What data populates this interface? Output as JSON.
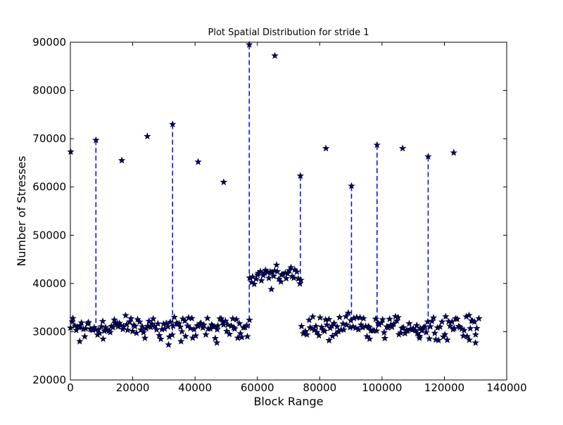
{
  "chart_data": {
    "type": "scatter",
    "title": "Plot Spatial Distribution for stride 1",
    "xlabel": "Block Range",
    "ylabel": "Number of Stresses",
    "xlim": [
      0,
      140000
    ],
    "ylim": [
      20000,
      90000
    ],
    "xticks": [
      "0",
      "20000",
      "40000",
      "60000",
      "80000",
      "100000",
      "120000",
      "140000"
    ],
    "yticks": [
      "20000",
      "30000",
      "40000",
      "50000",
      "60000",
      "70000",
      "80000",
      "90000"
    ],
    "grid": false,
    "legend": "none",
    "marker": "star",
    "colors": {
      "line": "#0000ff",
      "marker_fill": "#000080",
      "marker_edge": "#000000"
    },
    "bands": [
      {
        "x": [
          0,
          57400
        ],
        "y_center": 31000,
        "spread": 3000
      },
      {
        "x": [
          57600,
          74000
        ],
        "y_center": 41800,
        "spread": 2200
      },
      {
        "x": [
          74200,
          131000
        ],
        "y_center": 31000,
        "spread": 3000
      }
    ],
    "low_outliers": [
      {
        "x": 3000,
        "y": 28000
      },
      {
        "x": 10500,
        "y": 28500
      },
      {
        "x": 31500,
        "y": 27300
      },
      {
        "x": 35500,
        "y": 28000
      },
      {
        "x": 47000,
        "y": 27700
      },
      {
        "x": 64500,
        "y": 38800
      },
      {
        "x": 83000,
        "y": 28200
      },
      {
        "x": 96000,
        "y": 28500
      },
      {
        "x": 112000,
        "y": 28700
      },
      {
        "x": 128000,
        "y": 28300
      },
      {
        "x": 130000,
        "y": 27700
      }
    ],
    "spikes": [
      {
        "x": 100,
        "y": 67300
      },
      {
        "x": 8200,
        "y": 69700
      },
      {
        "x": 16500,
        "y": 65500
      },
      {
        "x": 24700,
        "y": 70500
      },
      {
        "x": 32800,
        "y": 73000
      },
      {
        "x": 41000,
        "y": 65200
      },
      {
        "x": 49200,
        "y": 61000
      },
      {
        "x": 57400,
        "y": 89500
      },
      {
        "x": 65600,
        "y": 87200
      },
      {
        "x": 73800,
        "y": 62300
      },
      {
        "x": 82000,
        "y": 68000
      },
      {
        "x": 90200,
        "y": 60200
      },
      {
        "x": 98400,
        "y": 68700
      },
      {
        "x": 106600,
        "y": 68000
      },
      {
        "x": 114800,
        "y": 66300
      },
      {
        "x": 123000,
        "y": 67100
      }
    ],
    "dashed_drop_lines_at_x": [
      8200,
      32800,
      57400,
      73800,
      90200,
      98400,
      114800
    ]
  }
}
